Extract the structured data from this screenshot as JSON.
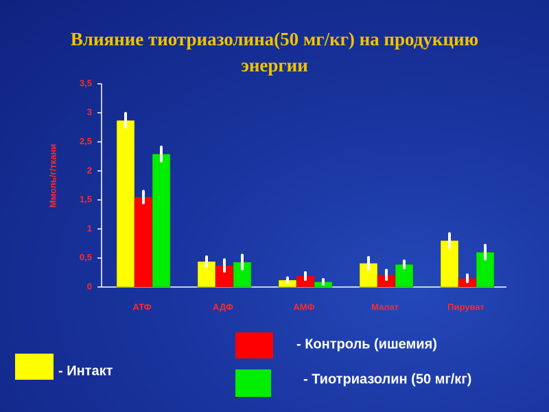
{
  "chart_data": {
    "type": "bar",
    "title": "Влияние тиотриазолина(50 мг/кг) на продукцию энергии",
    "y_label": "Ммоль/г/ткани",
    "categories": [
      "АТФ",
      "АДФ",
      "АМФ",
      "Малат",
      "Пируват"
    ],
    "series": [
      {
        "name": "- Интакт",
        "color": "#ffff00",
        "values": [
          2.87,
          0.44,
          0.12,
          0.41,
          0.8
        ],
        "errors": [
          0.12,
          0.08,
          0.04,
          0.1,
          0.12
        ]
      },
      {
        "name": "- Контроль (ишемия)",
        "color": "#ff0000",
        "values": [
          1.55,
          0.37,
          0.19,
          0.21,
          0.15
        ],
        "errors": [
          0.1,
          0.1,
          0.06,
          0.08,
          0.06
        ]
      },
      {
        "name": "- Тиотриазолин (50 мг/кг)",
        "color": "#00ee00",
        "values": [
          2.29,
          0.43,
          0.09,
          0.39,
          0.6
        ],
        "errors": [
          0.12,
          0.12,
          0.04,
          0.06,
          0.12
        ]
      }
    ],
    "ylim": [
      0,
      3.5
    ],
    "yticks": [
      0,
      {
        "value": 0.5,
        "label": "0,5"
      },
      1,
      {
        "value": 1.5,
        "label": "1,5"
      },
      2,
      {
        "value": 2.5,
        "label": "2,5"
      },
      3,
      {
        "value": 3.5,
        "label": "3,5"
      }
    ],
    "grid": false
  }
}
